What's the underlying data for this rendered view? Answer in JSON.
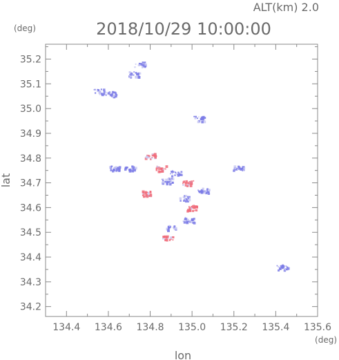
{
  "chart_data": {
    "type": "scatter",
    "title": "2018/10/29 10:00:00",
    "subtitle": "ALT(km) 2.0",
    "xlabel": "lon",
    "ylabel": "lat",
    "x_unit": "(deg)",
    "y_unit": "(deg)",
    "xlim": [
      134.3,
      135.6
    ],
    "ylim": [
      34.16,
      35.26
    ],
    "xticks": [
      "134.4",
      "134.6",
      "134.8",
      "135.0",
      "135.2",
      "135.4",
      "135.6"
    ],
    "yticks": [
      "34.2",
      "34.3",
      "34.4",
      "34.5",
      "34.6",
      "34.7",
      "34.8",
      "34.9",
      "35.0",
      "35.1",
      "35.2"
    ],
    "grid": false,
    "colors": {
      "positive": "#f06a78",
      "negative": "#7b7be6",
      "axis": "#888888"
    },
    "clusters": [
      {
        "lon": 134.75,
        "lat": 35.18,
        "color": "negative"
      },
      {
        "lon": 134.72,
        "lat": 35.14,
        "color": "negative"
      },
      {
        "lon": 134.55,
        "lat": 35.07,
        "color": "negative"
      },
      {
        "lon": 134.61,
        "lat": 35.06,
        "color": "negative"
      },
      {
        "lon": 135.03,
        "lat": 34.96,
        "color": "negative"
      },
      {
        "lon": 134.63,
        "lat": 34.76,
        "color": "negative"
      },
      {
        "lon": 134.7,
        "lat": 34.76,
        "color": "negative"
      },
      {
        "lon": 134.8,
        "lat": 34.81,
        "color": "positive"
      },
      {
        "lon": 134.85,
        "lat": 34.76,
        "color": "positive"
      },
      {
        "lon": 134.92,
        "lat": 34.74,
        "color": "negative"
      },
      {
        "lon": 134.88,
        "lat": 34.71,
        "color": "negative"
      },
      {
        "lon": 134.98,
        "lat": 34.7,
        "color": "positive"
      },
      {
        "lon": 135.05,
        "lat": 34.67,
        "color": "negative"
      },
      {
        "lon": 134.96,
        "lat": 34.64,
        "color": "negative"
      },
      {
        "lon": 135.0,
        "lat": 34.6,
        "color": "positive"
      },
      {
        "lon": 134.98,
        "lat": 34.55,
        "color": "negative"
      },
      {
        "lon": 134.9,
        "lat": 34.52,
        "color": "negative"
      },
      {
        "lon": 134.88,
        "lat": 34.48,
        "color": "positive"
      },
      {
        "lon": 134.78,
        "lat": 34.66,
        "color": "positive"
      },
      {
        "lon": 135.22,
        "lat": 34.76,
        "color": "negative"
      },
      {
        "lon": 135.43,
        "lat": 34.36,
        "color": "negative"
      }
    ]
  }
}
